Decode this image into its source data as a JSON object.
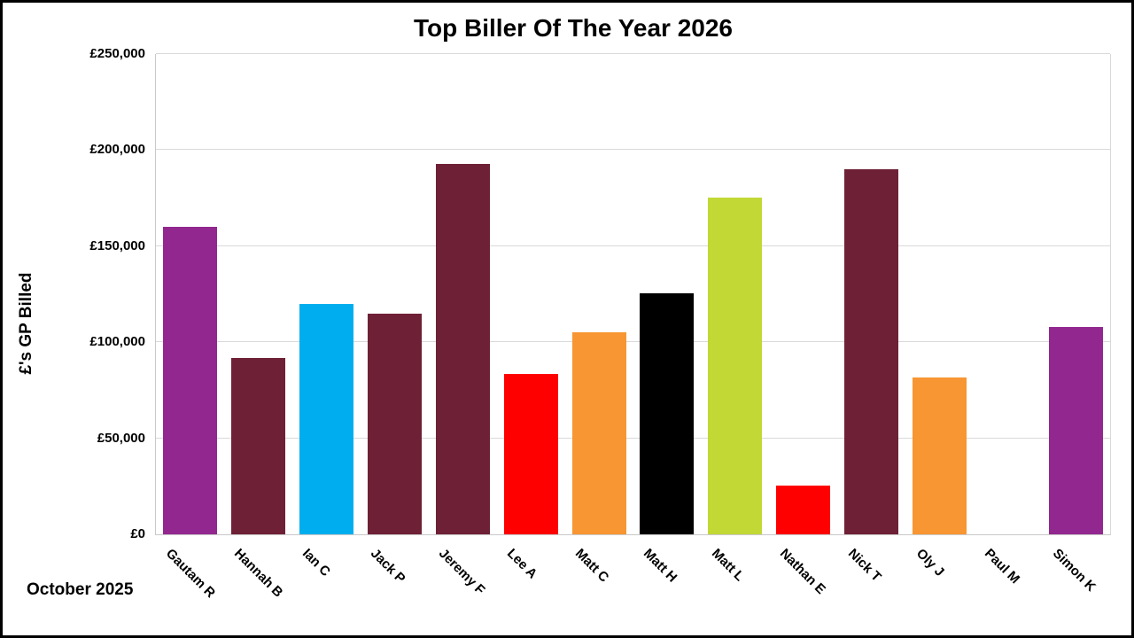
{
  "chart_data": {
    "type": "bar",
    "title": "Top Biller Of The Year 2026",
    "ylabel": "£'s GP Billed",
    "footer": "October 2025",
    "ylim": [
      0,
      250000
    ],
    "ytick_step": 50000,
    "ytick_labels": [
      "£0",
      "£50,000",
      "£100,000",
      "£150,000",
      "£200,000",
      "£250,000"
    ],
    "grid": true,
    "legend": "none",
    "categories": [
      "Gautam R",
      "Hannah B",
      "Ian C",
      "Jack P",
      "Jeremy F",
      "Lee A",
      "Matt C",
      "Matt H",
      "Matt L",
      "Nathan E",
      "Nick T",
      "Oly J",
      "Paul M",
      "Simon K"
    ],
    "values": [
      160000,
      92000,
      120000,
      115000,
      193000,
      83500,
      105000,
      125500,
      175500,
      25500,
      190000,
      81500,
      0,
      108000
    ],
    "bar_colors": [
      "#92278F",
      "#6E2136",
      "#00AEEF",
      "#6E2136",
      "#6E2136",
      "#FF0000",
      "#F79632",
      "#000000",
      "#C2D835",
      "#FF0000",
      "#6E2136",
      "#F79632",
      null,
      "#92278F"
    ],
    "grid_color": "#d9d9d9",
    "axis_color": "#c9c9c9",
    "text_color": "#000000"
  }
}
